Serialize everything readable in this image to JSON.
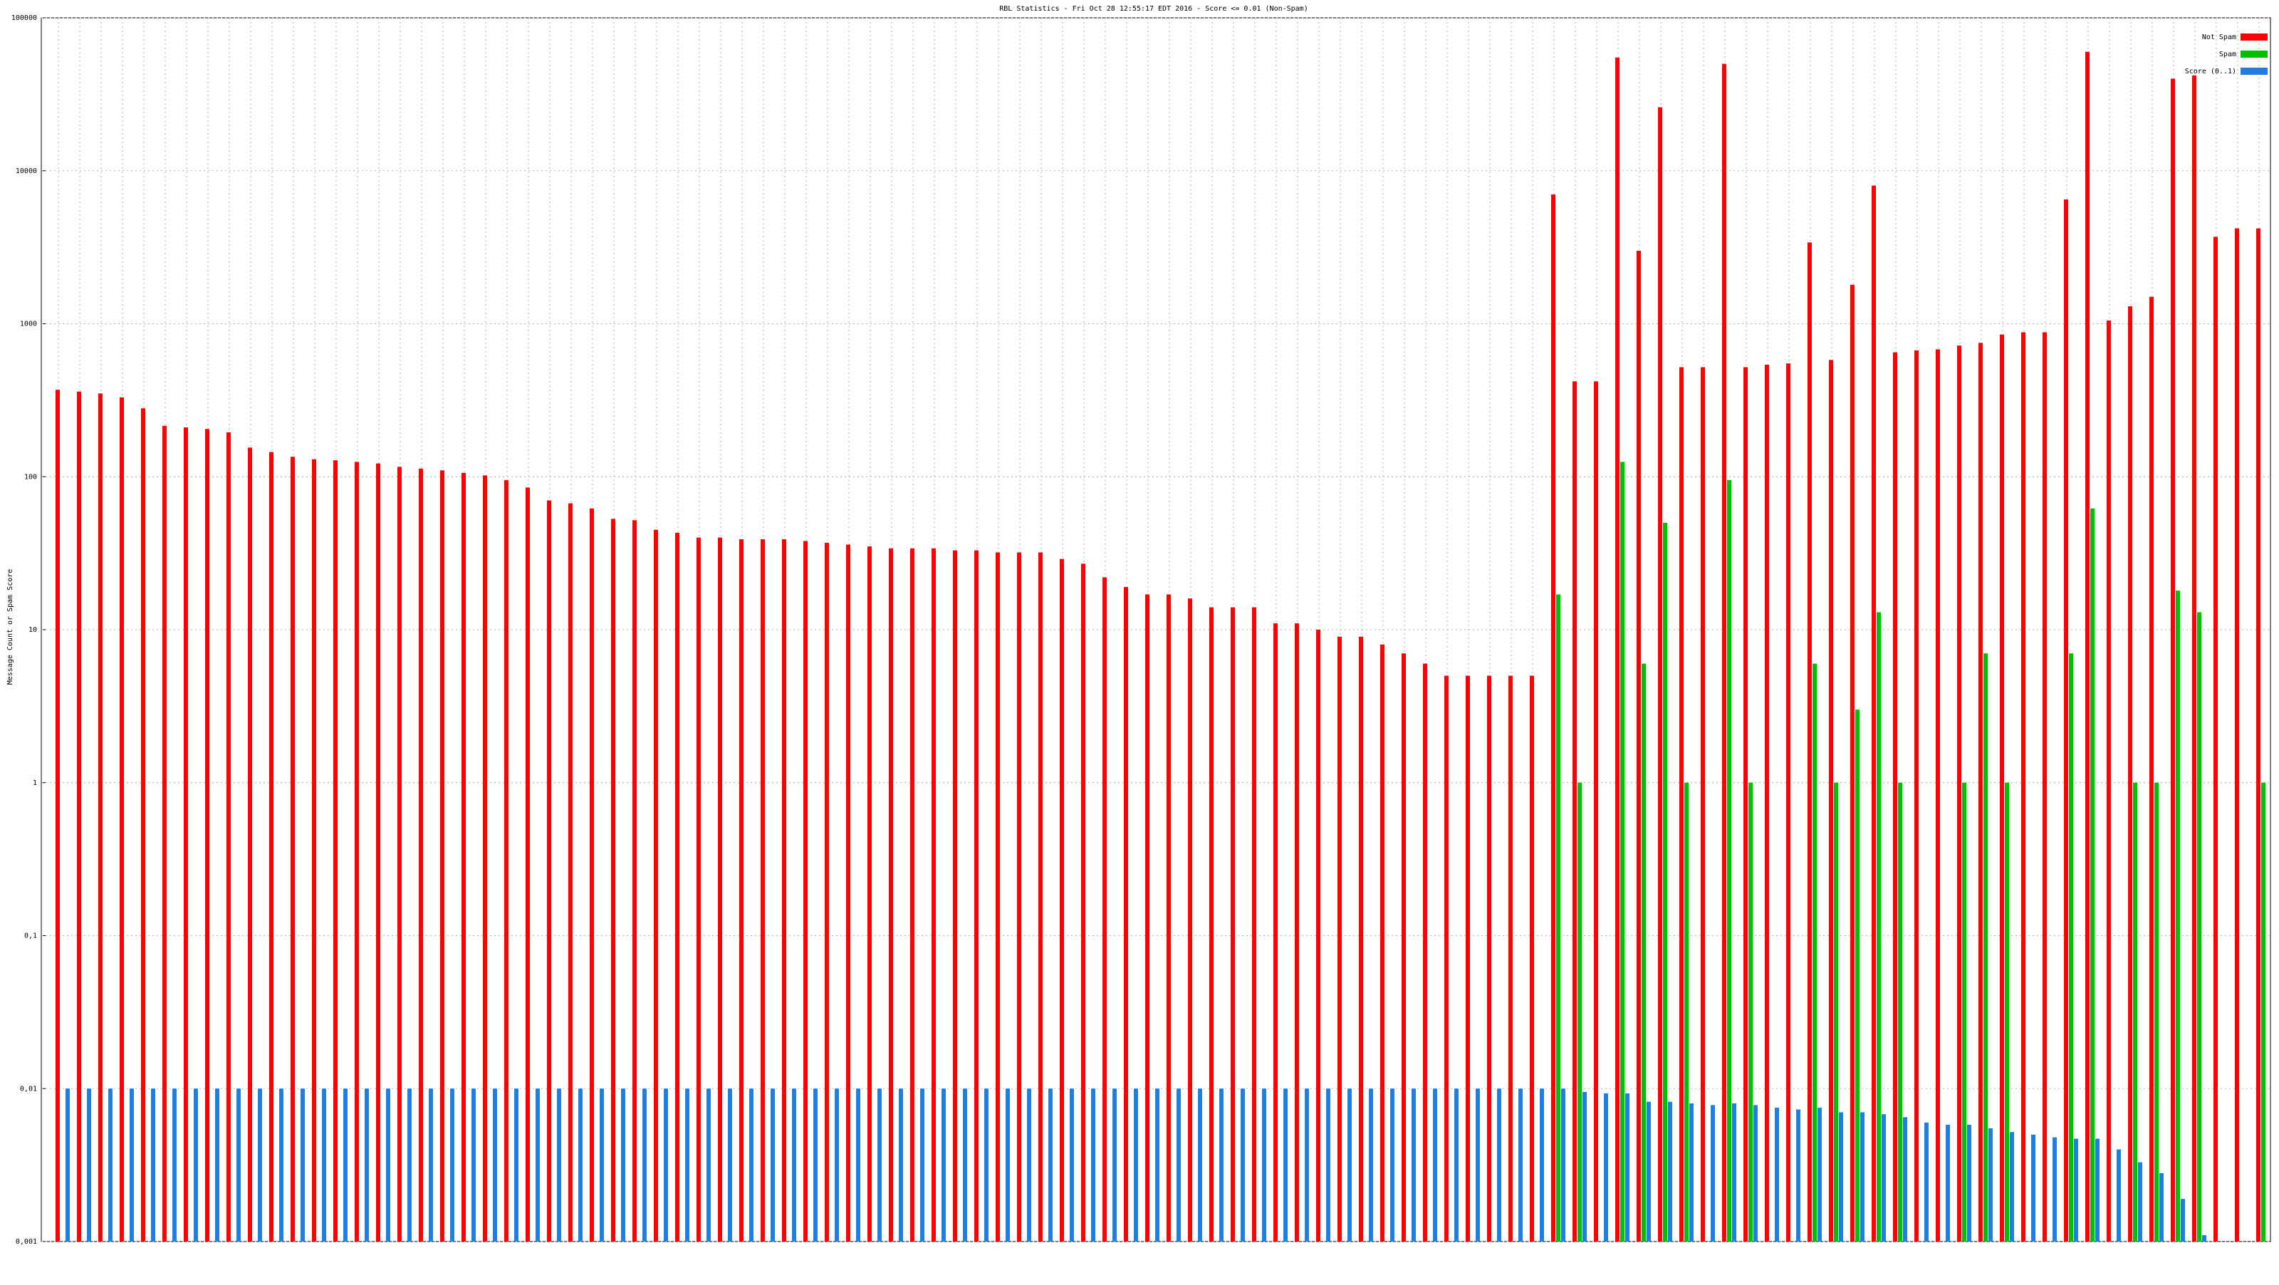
{
  "chart_data": {
    "type": "bar",
    "title": "RBL Statistics - Fri Oct 28 12:55:17 EDT 2016 - Score <= 0.01 (Non-Spam)",
    "y_label": "Message Count or Spam Score",
    "log_scale": true,
    "grid": true,
    "legend": "top-right",
    "ylim": [
      0.001,
      100000
    ],
    "yticks": [
      {
        "value": 0.001,
        "label": "0,001"
      },
      {
        "value": 0.01,
        "label": "0,01"
      },
      {
        "value": 0.1,
        "label": "0,1"
      },
      1,
      10,
      100,
      1000,
      10000,
      100000
    ],
    "series": [
      {
        "name": "Not Spam",
        "color": "#ff0000",
        "values": [
          370,
          360,
          350,
          330,
          280,
          215,
          210,
          205,
          195,
          155,
          145,
          135,
          130,
          128,
          125,
          122,
          116,
          113,
          110,
          106,
          102,
          95,
          85,
          70,
          67,
          62,
          53,
          52,
          45,
          43,
          40,
          40,
          39,
          39,
          39,
          38,
          37,
          36,
          35,
          34,
          34,
          34,
          33,
          33,
          32,
          32,
          32,
          29,
          27,
          22,
          19,
          17,
          17,
          16,
          14,
          14,
          14,
          11,
          11,
          10,
          9,
          9,
          8,
          7,
          6,
          5,
          5,
          5,
          5,
          5,
          7000,
          420,
          420,
          55000,
          3000,
          26000,
          520,
          520,
          50000,
          520,
          540,
          550,
          3400,
          580,
          1800,
          8000,
          650,
          670,
          680,
          720,
          750,
          850,
          880,
          880,
          6500,
          60000,
          1050,
          1300,
          1500,
          40000,
          42000,
          3700,
          4200,
          4200
        ]
      },
      {
        "name": "Spam",
        "color": "#00c000",
        "values": [
          null,
          null,
          null,
          null,
          null,
          null,
          null,
          null,
          null,
          null,
          null,
          null,
          null,
          null,
          null,
          null,
          null,
          null,
          null,
          null,
          null,
          null,
          null,
          null,
          null,
          null,
          null,
          null,
          null,
          null,
          null,
          null,
          null,
          null,
          null,
          null,
          null,
          null,
          null,
          null,
          null,
          null,
          null,
          null,
          null,
          null,
          null,
          null,
          null,
          null,
          null,
          null,
          null,
          null,
          null,
          null,
          null,
          null,
          null,
          null,
          null,
          null,
          null,
          null,
          null,
          null,
          null,
          null,
          null,
          null,
          17,
          1,
          null,
          125,
          6,
          50,
          1,
          null,
          95,
          1,
          null,
          null,
          6,
          1,
          3,
          13,
          1,
          null,
          null,
          1,
          7,
          1,
          null,
          null,
          7,
          62,
          null,
          1,
          1,
          18,
          13,
          null,
          null,
          1
        ]
      },
      {
        "name": "Score (0..1)",
        "color": "#1e7fe0",
        "values": [
          0.01,
          0.01,
          0.01,
          0.01,
          0.01,
          0.01,
          0.01,
          0.01,
          0.01,
          0.01,
          0.01,
          0.01,
          0.01,
          0.01,
          0.01,
          0.01,
          0.01,
          0.01,
          0.01,
          0.01,
          0.01,
          0.01,
          0.01,
          0.01,
          0.01,
          0.01,
          0.01,
          0.01,
          0.01,
          0.01,
          0.01,
          0.01,
          0.01,
          0.01,
          0.01,
          0.01,
          0.01,
          0.01,
          0.01,
          0.01,
          0.01,
          0.01,
          0.01,
          0.01,
          0.01,
          0.01,
          0.01,
          0.01,
          0.01,
          0.01,
          0.01,
          0.01,
          0.01,
          0.01,
          0.01,
          0.01,
          0.01,
          0.01,
          0.01,
          0.01,
          0.01,
          0.01,
          0.01,
          0.01,
          0.01,
          0.01,
          0.01,
          0.01,
          0.01,
          0.01,
          0.01,
          0.0095,
          0.0093,
          0.0093,
          0.0082,
          0.0082,
          0.008,
          0.0078,
          0.008,
          0.0078,
          0.0075,
          0.0073,
          0.0075,
          0.007,
          0.007,
          0.0068,
          0.0065,
          0.006,
          0.0058,
          0.0058,
          0.0055,
          0.0052,
          0.005,
          0.0048,
          0.0047,
          0.0047,
          0.004,
          0.0033,
          0.0028,
          0.0019,
          0.0011,
          null,
          null,
          null
        ]
      }
    ]
  }
}
